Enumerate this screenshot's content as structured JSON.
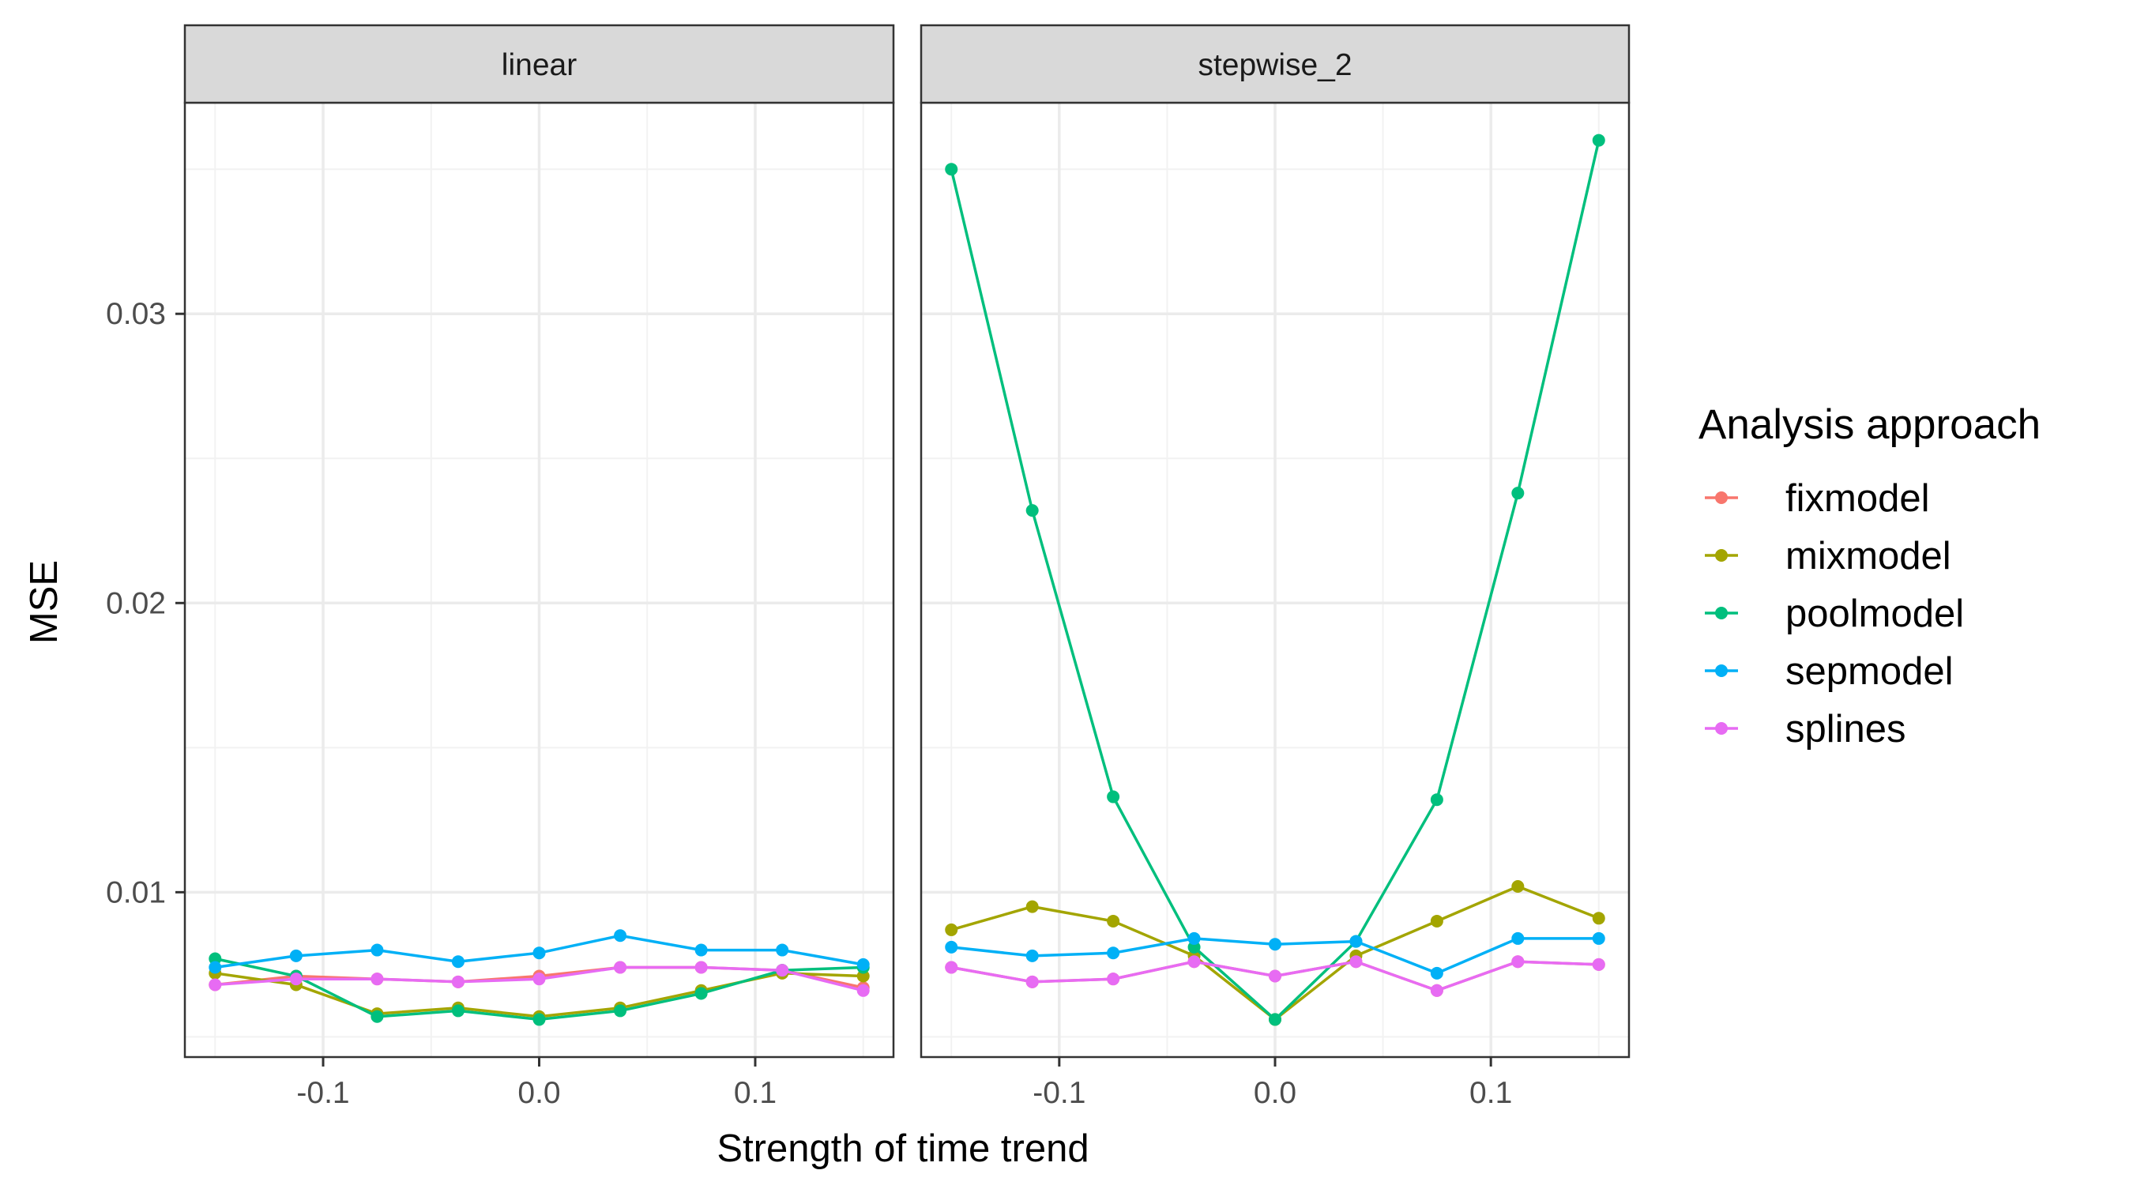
{
  "chart_data": {
    "type": "line",
    "x": [
      -0.15,
      -0.1125,
      -0.075,
      -0.0375,
      0.0,
      0.0375,
      0.075,
      0.1125,
      0.15
    ],
    "xlabel": "Strength of time trend",
    "ylabel": "MSE",
    "xlim": [
      -0.164,
      0.164
    ],
    "ylim": [
      0.0043,
      0.0373
    ],
    "x_ticks": [
      -0.1,
      0.0,
      0.1
    ],
    "x_tick_labels": [
      "-0.1",
      "0.0",
      "0.1"
    ],
    "y_ticks": [
      0.01,
      0.02,
      0.03
    ],
    "y_tick_labels": [
      "0.01",
      "0.02",
      "0.03"
    ],
    "grid": true,
    "legend": {
      "title": "Analysis approach",
      "position": "right",
      "entries": [
        "fixmodel",
        "mixmodel",
        "poolmodel",
        "sepmodel",
        "splines"
      ]
    },
    "colors": {
      "fixmodel": "#F8766D",
      "mixmodel": "#A3A500",
      "poolmodel": "#00BF7D",
      "sepmodel": "#00B0F6",
      "splines": "#E76BF3"
    },
    "panels": [
      {
        "label": "linear",
        "series": [
          {
            "name": "fixmodel",
            "values": [
              0.0068,
              0.0071,
              0.007,
              0.0069,
              0.0071,
              0.0074,
              0.0074,
              0.0073,
              0.0067
            ]
          },
          {
            "name": "mixmodel",
            "values": [
              0.0072,
              0.0068,
              0.0058,
              0.006,
              0.0057,
              0.006,
              0.0066,
              0.0072,
              0.0071
            ]
          },
          {
            "name": "poolmodel",
            "values": [
              0.0077,
              0.0071,
              0.0057,
              0.0059,
              0.0056,
              0.0059,
              0.0065,
              0.0073,
              0.0074
            ]
          },
          {
            "name": "sepmodel",
            "values": [
              0.0074,
              0.0078,
              0.008,
              0.0076,
              0.0079,
              0.0085,
              0.008,
              0.008,
              0.0075
            ]
          },
          {
            "name": "splines",
            "values": [
              0.0068,
              0.007,
              0.007,
              0.0069,
              0.007,
              0.0074,
              0.0074,
              0.0073,
              0.0066
            ]
          }
        ]
      },
      {
        "label": "stepwise_2",
        "series": [
          {
            "name": "fixmodel",
            "values": [
              0.0074,
              0.0069,
              0.007,
              0.0076,
              0.0071,
              0.0076,
              0.0066,
              0.0076,
              0.0075
            ]
          },
          {
            "name": "mixmodel",
            "values": [
              0.0087,
              0.0095,
              0.009,
              0.0078,
              0.0056,
              0.0078,
              0.009,
              0.0102,
              0.0091
            ]
          },
          {
            "name": "poolmodel",
            "values": [
              0.035,
              0.0232,
              0.0133,
              0.0081,
              0.0056,
              0.0083,
              0.0132,
              0.0238,
              0.036
            ]
          },
          {
            "name": "sepmodel",
            "values": [
              0.0081,
              0.0078,
              0.0079,
              0.0084,
              0.0082,
              0.0083,
              0.0072,
              0.0084,
              0.0084
            ]
          },
          {
            "name": "splines",
            "values": [
              0.0074,
              0.0069,
              0.007,
              0.0076,
              0.0071,
              0.0076,
              0.0066,
              0.0076,
              0.0075
            ]
          }
        ]
      }
    ]
  }
}
